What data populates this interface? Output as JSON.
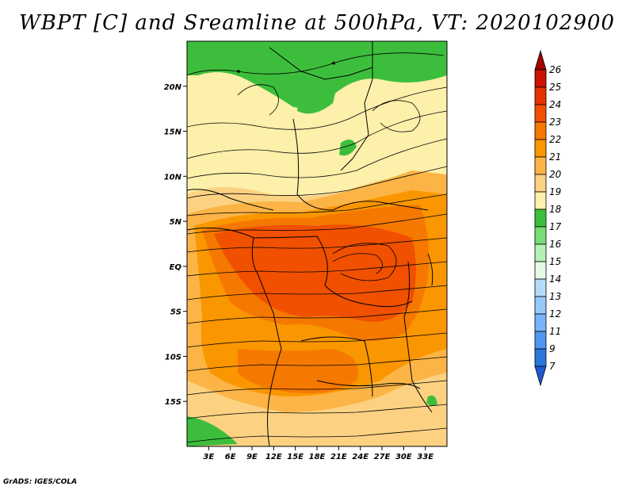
{
  "title": "WBPT [C] and Sreamline at 500hPa, VT: 2020102900",
  "credit": "GrADS: IGES/COLA",
  "map": {
    "lon_range": [
      0,
      36
    ],
    "lat_range": [
      -20,
      25
    ],
    "lat_ticks": [
      {
        "label": "20N",
        "value": 20
      },
      {
        "label": "15N",
        "value": 15
      },
      {
        "label": "10N",
        "value": 10
      },
      {
        "label": "5N",
        "value": 5
      },
      {
        "label": "EQ",
        "value": 0
      },
      {
        "label": "5S",
        "value": -5
      },
      {
        "label": "10S",
        "value": -10
      },
      {
        "label": "15S",
        "value": -15
      }
    ],
    "lon_ticks": [
      {
        "label": "3E",
        "value": 3
      },
      {
        "label": "6E",
        "value": 6
      },
      {
        "label": "9E",
        "value": 9
      },
      {
        "label": "12E",
        "value": 12
      },
      {
        "label": "15E",
        "value": 15
      },
      {
        "label": "18E",
        "value": 18
      },
      {
        "label": "21E",
        "value": 21
      },
      {
        "label": "24E",
        "value": 24
      },
      {
        "label": "27E",
        "value": 27
      },
      {
        "label": "30E",
        "value": 30
      },
      {
        "label": "33E",
        "value": 33
      }
    ]
  },
  "colorbar": {
    "levels": [
      {
        "label": "26",
        "color": "#a50000"
      },
      {
        "label": "25",
        "color": "#c81400"
      },
      {
        "label": "24",
        "color": "#e63200"
      },
      {
        "label": "23",
        "color": "#f05000"
      },
      {
        "label": "22",
        "color": "#f57800"
      },
      {
        "label": "21",
        "color": "#fa9600"
      },
      {
        "label": "20",
        "color": "#fcb446"
      },
      {
        "label": "19",
        "color": "#fcd282"
      },
      {
        "label": "18",
        "color": "#fcf0aa"
      },
      {
        "label": "17",
        "color": "#3cbe3c"
      },
      {
        "label": "16",
        "color": "#78dc78"
      },
      {
        "label": "15",
        "color": "#b4f0b4"
      },
      {
        "label": "14",
        "color": "#e6fae6"
      },
      {
        "label": "13",
        "color": "#b4dcfa"
      },
      {
        "label": "12",
        "color": "#96c8fa"
      },
      {
        "label": "11",
        "color": "#78b4fa"
      },
      {
        "label": "9",
        "color": "#5096f0"
      },
      {
        "label": "7",
        "color": "#2878dc"
      }
    ],
    "bottom_color": "#1e5ad2"
  }
}
